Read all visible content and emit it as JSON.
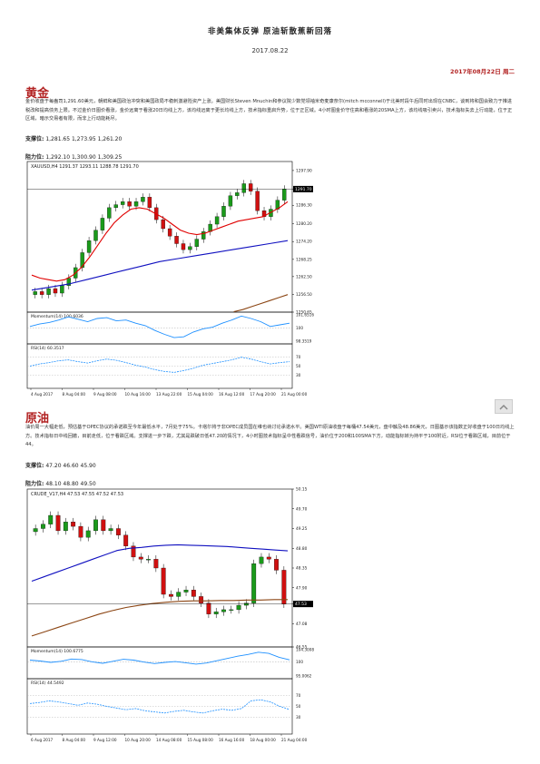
{
  "doc": {
    "title": "非美集体反弹 原油斩散蕉新回落",
    "date": "2017.08.22",
    "date_line": "2017年08月22日 周二"
  },
  "gold": {
    "heading": "黄金",
    "paragraph": "金价收盘于每盎司1,291.60美元，朝鲜和美国政治冲突和美国政局不稳刺激避险资产上涨。美国财长Steven Mnuchin和参议院少数党领袖米奇麦康奈尔(mitch mcconnell)于北美时段午后同时出现在CNBC，谈到将和国会致力于推进税改和提高债务上限。不过金价日图价看涨，金价远离于看涨20日均线上方，该均线远离于更长均线上方，技术指标重启升势，位于正区域。4小时图金价守住高和看涨的20SMA上方，该均线吸引卖兴，技术指标失去上行动能，位于正区域，暗示交易者有限，而非上行动能耗尽。",
    "support_label": "支撑位:",
    "support_values": "1,281.65 1,273.95 1,261.20",
    "resist_label": "阻力位:",
    "resist_values": "1,292.10 1,300.90 1,309.25",
    "chart": {
      "header": "XAUUSD,H4  1291.37 1293.11 1288.78 1291.70",
      "price_label": "1291.70",
      "momentum_label": "Momentum(14) 100.6036",
      "rsi_label": "RSI(14) 60.3517"
    }
  },
  "oil": {
    "heading": "原油",
    "paragraph": "油价周一大幅走低，预估基于OPEC协议的承诺跌至今年最低水平，7月处于75%。卡塔尔将于非OPEC成员国在维也纳讨论承诺水平。美国WTI原油收盘于每桶47.54美元，盘中触及48.86美元，日图基示该指数正好收盘于100日均线上方。技术指标日中线回撤，目前走低，位于看跌区域。支撑进一步下跌，尤其是跌破日低47.20的情况下，4小时图技术指标呈中性看跌信号，油价位于200和100SMA下方，动能指标转为持平于100附近，RSI位于看跌区域，目前位于44。",
    "support_label": "支撑位:",
    "support_values": "47.20 46.60 45.90",
    "resist_label": "阻力位:",
    "resist_values": "48.10 48.80 49.50",
    "chart": {
      "header": "CRUDE_V17,H4  47.53 47.55 47.52 47.53",
      "price_label": "47.53",
      "momentum_label": "Momentum(14) 100.6775",
      "rsi_label": "RSI(14) 44.5492"
    }
  },
  "chart_data": [
    {
      "type": "candlestick",
      "symbol": "XAUUSD,H4",
      "x": [
        "4 Aug 2017",
        "8 Aug 04:00",
        "9 Aug 08:00",
        "10 Aug 16:00",
        "13 Aug 22:00",
        "15 Aug 04:00",
        "16 Aug 12:00",
        "17 Aug 20:00",
        "21 Aug 00:00"
      ],
      "y_ticks": [
        1297.9,
        1291.7,
        1286.3,
        1280.2,
        1274.2,
        1268.25,
        1262.5,
        1256.5,
        1250.65
      ],
      "ylim": [
        1250.65,
        1300.9
      ],
      "close_values": [
        1257.5,
        1256.5,
        1258.5,
        1257.0,
        1259.5,
        1262.0,
        1265.5,
        1270.5,
        1274.5,
        1278.0,
        1282.0,
        1285.5,
        1286.5,
        1287.5,
        1286.0,
        1287.5,
        1289.0,
        1285.5,
        1281.5,
        1278.5,
        1276.0,
        1273.5,
        1271.5,
        1272.5,
        1275.0,
        1277.5,
        1280.0,
        1282.5,
        1286.0,
        1289.5,
        1290.5,
        1293.5,
        1291.0,
        1284.5,
        1282.5,
        1285.0,
        1288.0,
        1291.7
      ],
      "sma20": [
        1263.0,
        1262.0,
        1261.5,
        1261.0,
        1261.5,
        1263.0,
        1265.5,
        1269.0,
        1273.0,
        1277.0,
        1280.5,
        1283.0,
        1285.0,
        1285.5,
        1285.0,
        1283.5,
        1282.0,
        1280.0,
        1278.0,
        1277.0,
        1276.5,
        1277.0,
        1278.0,
        1279.0,
        1280.0,
        1281.0,
        1281.5,
        1282.0,
        1282.5,
        1284.0,
        1285.5,
        1287.5
      ],
      "sma100": [
        1258.0,
        1259.0,
        1260.0,
        1261.5,
        1263.0,
        1264.5,
        1266.0,
        1267.5,
        1268.5,
        1269.5,
        1270.5,
        1271.5,
        1272.5,
        1273.5,
        1274.5
      ],
      "sma200": [
        1250.8,
        1251.5,
        1252.5,
        1253.5,
        1254.5,
        1255.5,
        1256.5
      ],
      "sma200_start_index": 30,
      "momentum_ticks": [
        101.6516,
        100,
        98.3519
      ],
      "momentum_values": [
        100.2,
        100.5,
        100.7,
        101.0,
        101.4,
        101.1,
        100.8,
        101.2,
        101.3,
        100.9,
        101.0,
        100.6,
        100.3,
        99.7,
        99.2,
        98.8,
        98.9,
        99.5,
        99.9,
        100.1,
        100.6,
        101.0,
        101.5,
        101.2,
        100.8,
        100.2,
        100.4,
        100.6
      ],
      "rsi_ticks": [
        70,
        50,
        30
      ],
      "rsi_values": [
        50,
        55,
        58,
        62,
        64,
        60,
        57,
        62,
        66,
        63,
        58,
        52,
        48,
        42,
        38,
        36,
        40,
        45,
        52,
        56,
        60,
        64,
        70,
        66,
        60,
        55,
        58,
        60
      ],
      "series": [
        {
          "name": "SMA20",
          "color": "#e00000"
        },
        {
          "name": "SMA100",
          "color": "#1010c0"
        },
        {
          "name": "SMA200",
          "color": "#8b4513"
        }
      ]
    },
    {
      "type": "candlestick",
      "symbol": "CRUDE_V17,H4",
      "x": [
        "6 Aug 2017",
        "8 Aug 04:00",
        "9 Aug 12:00",
        "10 Aug 20:00",
        "14 Aug 08:00",
        "15 Aug 08:00",
        "16 Aug 16:00",
        "18 Aug 00:00",
        "21 Aug 04:00"
      ],
      "y_ticks": [
        50.15,
        49.7,
        49.25,
        48.8,
        48.35,
        47.9,
        47.53,
        47.08,
        46.55
      ],
      "ylim": [
        46.55,
        50.15
      ],
      "close_values": [
        49.25,
        49.35,
        49.55,
        49.2,
        49.4,
        49.3,
        49.05,
        49.2,
        49.45,
        49.2,
        49.25,
        49.1,
        48.85,
        48.6,
        48.55,
        48.55,
        48.35,
        47.75,
        47.7,
        47.8,
        47.85,
        47.7,
        47.55,
        47.3,
        47.35,
        47.4,
        47.4,
        47.5,
        47.55,
        48.45,
        48.6,
        48.55,
        48.3,
        47.53
      ],
      "sma100": [
        48.05,
        48.15,
        48.25,
        48.35,
        48.45,
        48.55,
        48.65,
        48.75,
        48.8,
        48.82,
        48.85,
        48.87,
        48.88,
        48.87,
        48.86,
        48.85,
        48.84,
        48.82,
        48.8,
        48.78,
        48.76,
        48.74
      ],
      "sma200": [
        46.8,
        46.9,
        47.0,
        47.1,
        47.2,
        47.3,
        47.38,
        47.45,
        47.5,
        47.54,
        47.57,
        47.59,
        47.6,
        47.6,
        47.61,
        47.61,
        47.62,
        47.62,
        47.63,
        47.63
      ],
      "momentum_ticks": [
        104.3008,
        100,
        95.0062
      ],
      "momentum_values": [
        100.6,
        100.3,
        99.8,
        100.2,
        101.0,
        100.8,
        100.0,
        99.5,
        100.2,
        100.9,
        100.6,
        99.9,
        99.4,
        99.8,
        100.1,
        99.7,
        99.2,
        99.6,
        100.4,
        101.2,
        102.0,
        102.6,
        103.4,
        103.0,
        101.6,
        100.7
      ],
      "rsi_ticks": [
        70,
        50,
        30
      ],
      "rsi_values": [
        55,
        57,
        60,
        58,
        55,
        52,
        56,
        54,
        50,
        47,
        44,
        46,
        42,
        40,
        38,
        41,
        43,
        40,
        38,
        42,
        45,
        43,
        46,
        60,
        62,
        58,
        50,
        44.5
      ],
      "series": [
        {
          "name": "SMA100",
          "color": "#1010c0"
        },
        {
          "name": "SMA200",
          "color": "#8b4513"
        }
      ]
    }
  ]
}
